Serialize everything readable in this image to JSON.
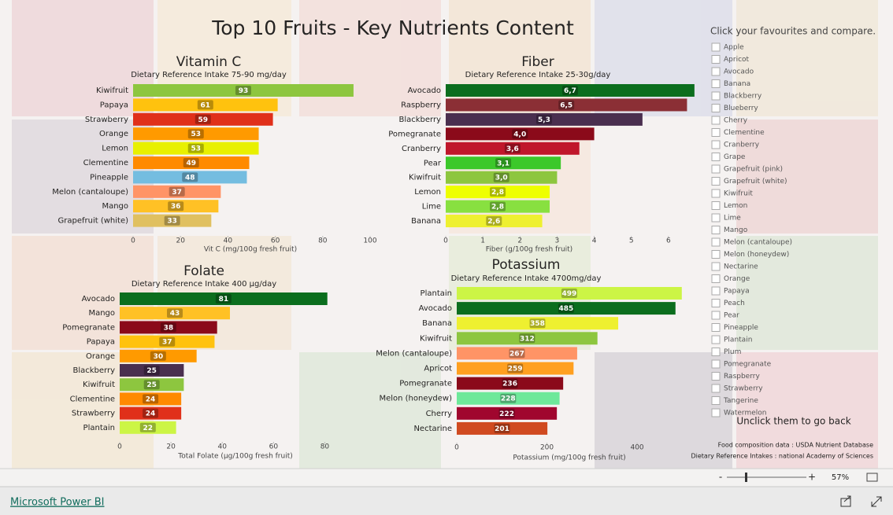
{
  "page": {
    "title": "Top 10 Fruits - Key Nutrients Content",
    "slicer": {
      "title": "Click your favourites and compare.",
      "items": [
        "Apple",
        "Apricot",
        "Avocado",
        "Banana",
        "Blackberry",
        "Blueberry",
        "Cherry",
        "Clementine",
        "Cranberry",
        "Grape",
        "Grapefruit (pink)",
        "Grapefruit (white)",
        "Kiwifruit",
        "Lemon",
        "Lime",
        "Mango",
        "Melon (cantaloupe)",
        "Melon (honeydew)",
        "Nectarine",
        "Orange",
        "Papaya",
        "Peach",
        "Pear",
        "Pineapple",
        "Plantain",
        "Plum",
        "Pomegranate",
        "Raspberry",
        "Strawberry",
        "Tangerine",
        "Watermelon"
      ],
      "hint": "Unclick them to go back"
    },
    "notes": [
      "Food composition data : USDA Nutrient Database",
      "Dietary Reference Intakes : national Academy of Sciences"
    ],
    "zoom": {
      "minus": "-",
      "plus": "+",
      "level": "57%"
    },
    "footer": {
      "brand": "Microsoft Power BI"
    }
  },
  "chart_data": [
    {
      "type": "bar",
      "orientation": "horizontal",
      "title": "Vitamin C",
      "subtitle": "Dietary Reference Intake 75-90 mg/day",
      "x_label": "Vit C (mg/100g fresh fruit)",
      "categories": [
        "Kiwifruit",
        "Papaya",
        "Strawberry",
        "Orange",
        "Lemon",
        "Clementine",
        "Pineapple",
        "Melon (cantaloupe)",
        "Mango",
        "Grapefruit (white)"
      ],
      "values": [
        93,
        61,
        59,
        53,
        53,
        49,
        48,
        37,
        36,
        33
      ],
      "colors": [
        "#8dc63f",
        "#ffc20e",
        "#e0301a",
        "#ff9a00",
        "#e8f000",
        "#ff8a00",
        "#74bde0",
        "#ff9466",
        "#ffc125",
        "#e0c060"
      ],
      "xlim": [
        0,
        100
      ],
      "xticks": [
        0,
        20,
        40,
        60,
        80,
        100
      ]
    },
    {
      "type": "bar",
      "orientation": "horizontal",
      "title": "Fiber",
      "subtitle": "Dietary Reference Intake 25-30g/day",
      "x_label": "Fiber (g/100g fresh fruit)",
      "categories": [
        "Avocado",
        "Raspberry",
        "Blackberry",
        "Pomegranate",
        "Cranberry",
        "Pear",
        "Kiwifruit",
        "Lemon",
        "Lime",
        "Banana"
      ],
      "values": [
        6.7,
        6.5,
        5.3,
        4.0,
        3.6,
        3.1,
        3.0,
        2.8,
        2.8,
        2.6
      ],
      "value_labels": [
        "6,7",
        "6,5",
        "5,3",
        "4,0",
        "3,6",
        "3,1",
        "3,0",
        "2,8",
        "2,8",
        "2,6"
      ],
      "colors": [
        "#0b6e1e",
        "#8b2f35",
        "#4a2f4f",
        "#8b0a1a",
        "#c0172b",
        "#3cc82a",
        "#8dc63f",
        "#eeff00",
        "#88e040",
        "#eef030"
      ],
      "xlim": [
        0,
        7
      ],
      "xticks": [
        0,
        1,
        2,
        3,
        4,
        5,
        6
      ]
    },
    {
      "type": "bar",
      "orientation": "horizontal",
      "title": "Folate",
      "subtitle": "Dietary Reference Intake 400 µg/day",
      "x_label": "Total Folate (µg/100g fresh fruit)",
      "categories": [
        "Avocado",
        "Mango",
        "Pomegranate",
        "Papaya",
        "Orange",
        "Blackberry",
        "Kiwifruit",
        "Clementine",
        "Strawberry",
        "Plantain"
      ],
      "values": [
        81,
        43,
        38,
        37,
        30,
        25,
        25,
        24,
        24,
        22
      ],
      "colors": [
        "#0b6e1e",
        "#ffc125",
        "#8b0a1a",
        "#ffc20e",
        "#ff9a00",
        "#4a2f4f",
        "#8dc63f",
        "#ff8a00",
        "#e0301a",
        "#ccf545"
      ],
      "xlim": [
        0,
        90
      ],
      "xticks": [
        0,
        20,
        40,
        60,
        80
      ]
    },
    {
      "type": "bar",
      "orientation": "horizontal",
      "title": "Potassium",
      "subtitle": "Dietary Reference Intake 4700mg/day",
      "x_label": "Potassium (mg/100g fresh fruit)",
      "categories": [
        "Plantain",
        "Avocado",
        "Banana",
        "Kiwifruit",
        "Melon (cantaloupe)",
        "Apricot",
        "Pomegranate",
        "Melon (honeydew)",
        "Cherry",
        "Nectarine"
      ],
      "values": [
        499,
        485,
        358,
        312,
        267,
        259,
        236,
        228,
        222,
        201
      ],
      "colors": [
        "#ccf545",
        "#0b6e1e",
        "#eef030",
        "#8dc63f",
        "#ff9466",
        "#ffa020",
        "#8b0a1a",
        "#6ee89a",
        "#a0062e",
        "#d04a20"
      ],
      "xlim": [
        0,
        550
      ],
      "xticks": [
        0,
        200,
        400
      ]
    }
  ]
}
